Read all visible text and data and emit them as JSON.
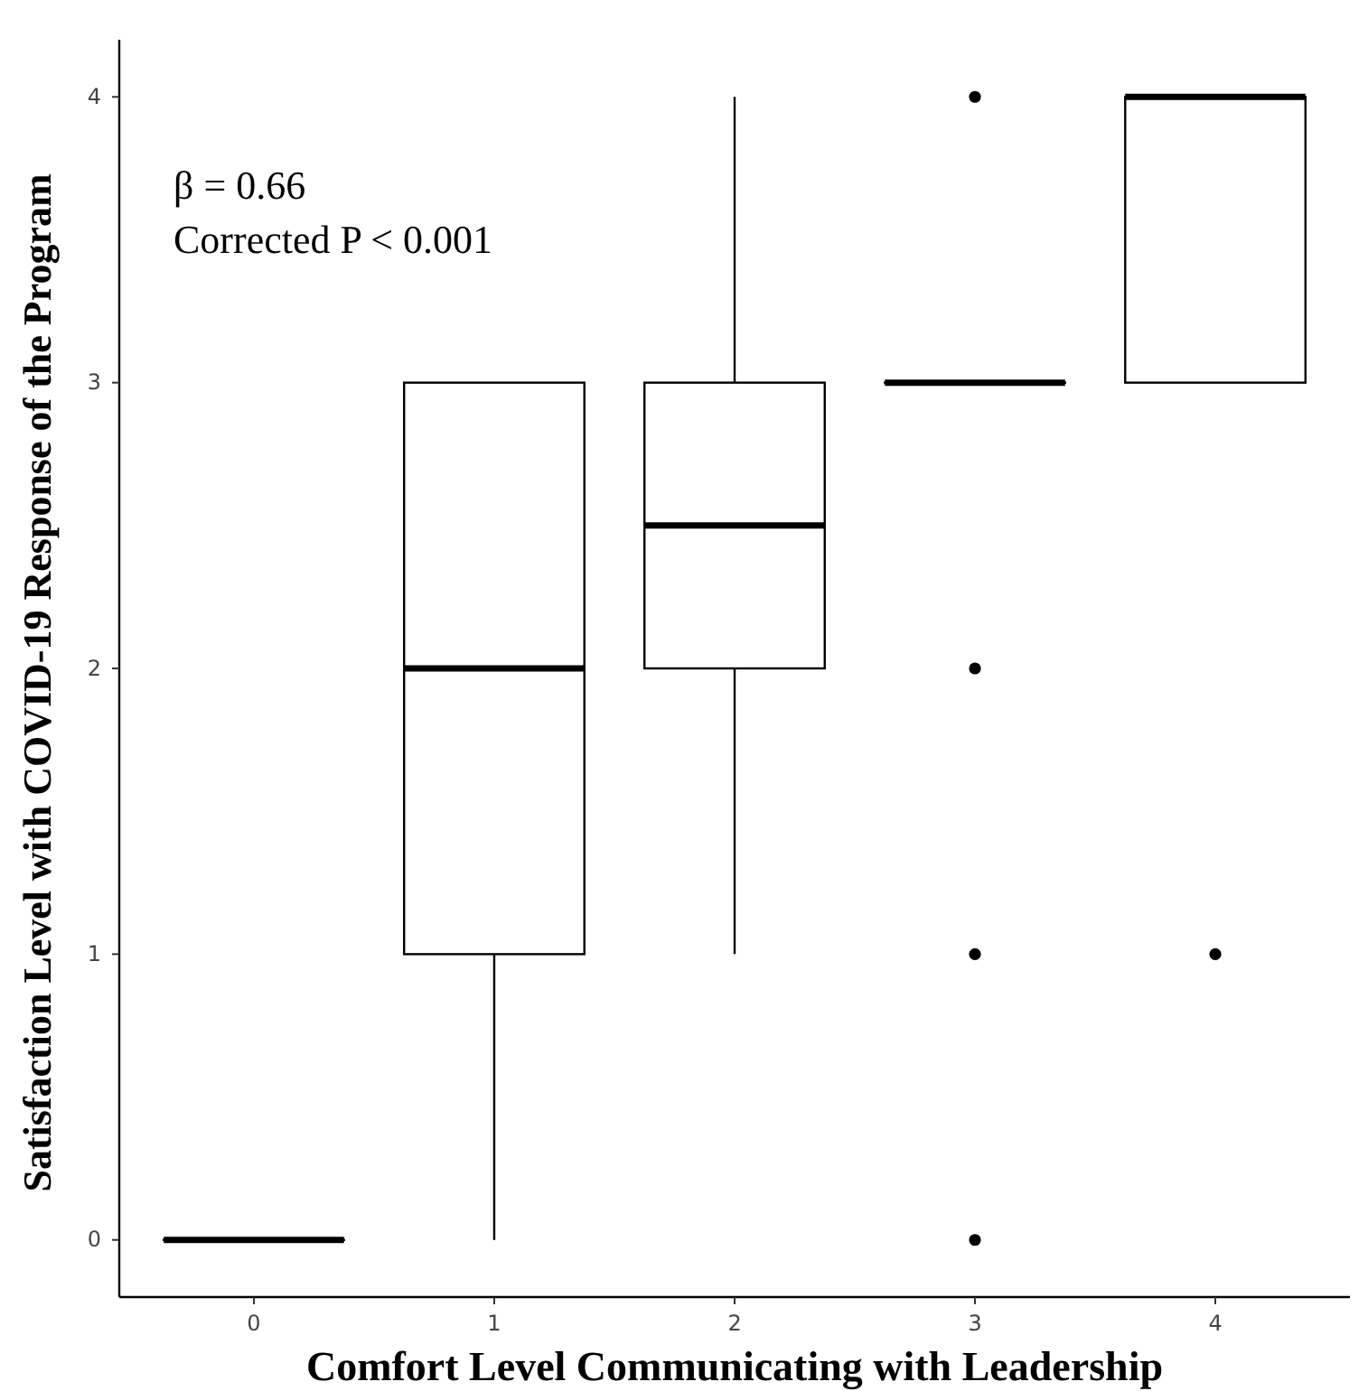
{
  "chart_data": {
    "type": "box",
    "xlabel": "Comfort Level Communicating with Leadership",
    "ylabel": "Satisfaction Level with COVID-19 Response of the Program",
    "categories": [
      "0",
      "1",
      "2",
      "3",
      "4"
    ],
    "boxes": [
      {
        "low": 0,
        "q1": 0,
        "median": 0,
        "q3": 0,
        "high": 0
      },
      {
        "low": 0,
        "q1": 1,
        "median": 2,
        "q3": 3,
        "high": 3
      },
      {
        "low": 1,
        "q1": 2,
        "median": 2.5,
        "q3": 3,
        "high": 4
      },
      {
        "low": 3,
        "q1": 3,
        "median": 3,
        "q3": 3,
        "high": 3,
        "outliers": [
          4,
          2,
          1,
          0
        ]
      },
      {
        "low": 3,
        "q1": 3,
        "median": 4,
        "q3": 4,
        "high": 4,
        "outliers": [
          1
        ]
      }
    ],
    "ylim": [
      -0.2,
      4.2
    ],
    "yticks": [
      0,
      1,
      2,
      3,
      4
    ],
    "grid": false,
    "annotations": [
      "β = 0.66",
      "Corrected P < 0.001"
    ]
  }
}
